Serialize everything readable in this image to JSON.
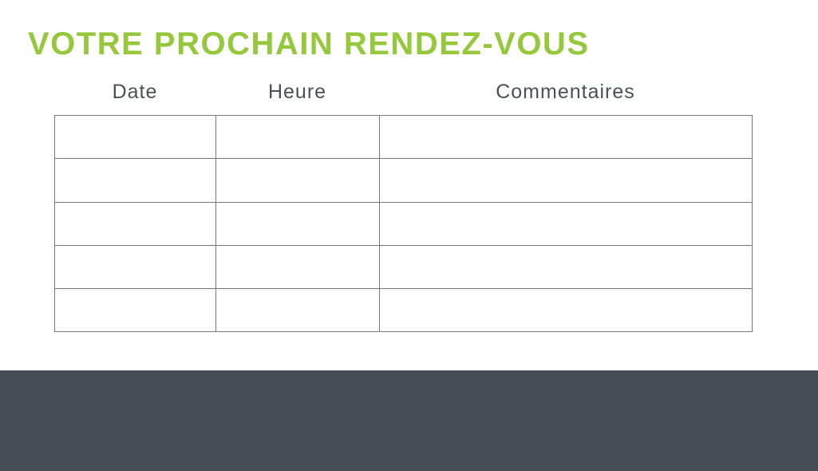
{
  "page": {
    "title": "VOTRE PROCHAIN RENDEZ-VOUS"
  },
  "table": {
    "headers": [
      "Date",
      "Heure",
      "Commentaires"
    ],
    "rows": [
      [
        "",
        "",
        ""
      ],
      [
        "",
        "",
        ""
      ],
      [
        "",
        "",
        ""
      ],
      [
        "",
        "",
        ""
      ],
      [
        "",
        "",
        ""
      ]
    ]
  },
  "colors": {
    "accent_green": "#96c83c",
    "header_text": "#4b5058",
    "table_border": "#75797e",
    "footer_background": "#474c55",
    "page_background": "#ffffff"
  }
}
